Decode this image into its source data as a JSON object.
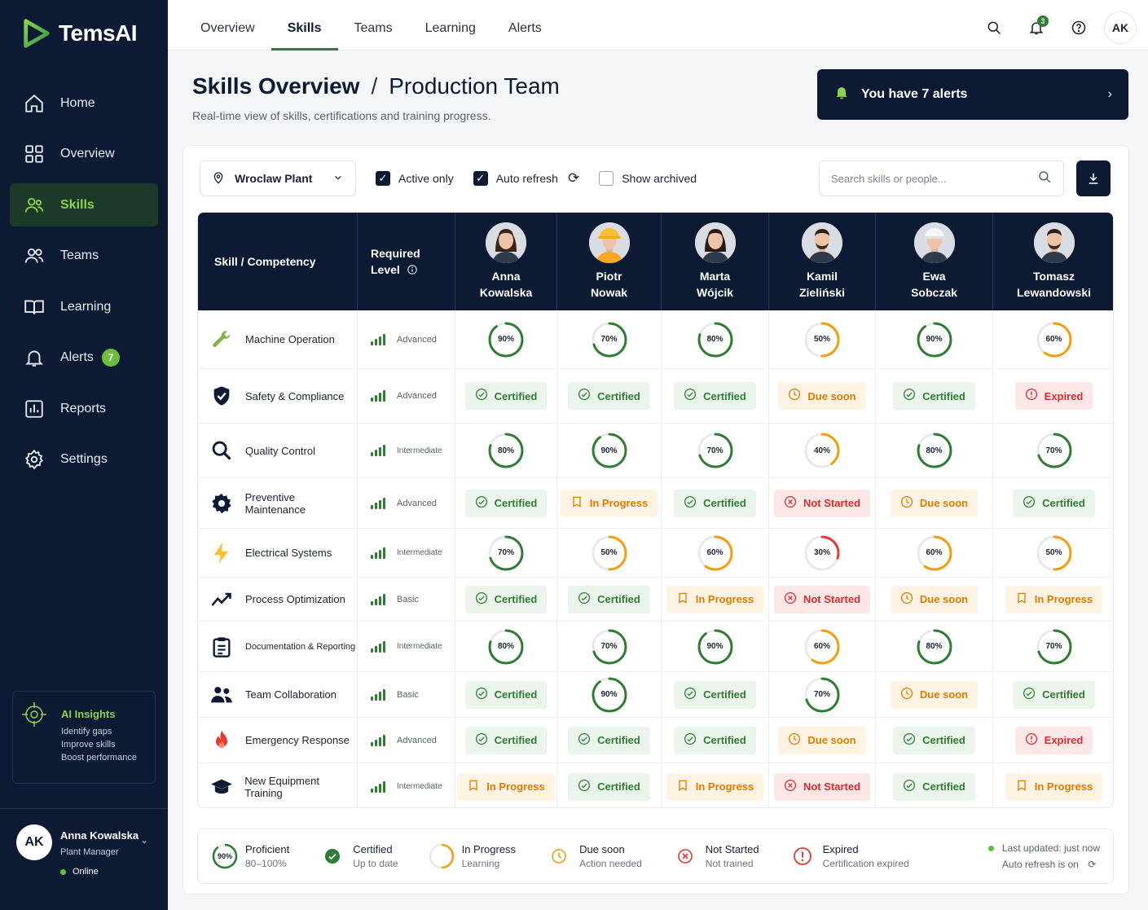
{
  "app": {
    "name": "TemsAI"
  },
  "sidebar": {
    "items": [
      {
        "label": "Home",
        "icon": "home-icon"
      },
      {
        "label": "Overview",
        "icon": "grid-icon"
      },
      {
        "label": "Skills",
        "icon": "users-icon",
        "active": true
      },
      {
        "label": "Teams",
        "icon": "team-icon"
      },
      {
        "label": "Learning",
        "icon": "book-icon"
      },
      {
        "label": "Alerts",
        "icon": "bell-icon",
        "badge": "7"
      },
      {
        "label": "Reports",
        "icon": "chart-icon"
      },
      {
        "label": "Settings",
        "icon": "gear-icon"
      }
    ],
    "ai": {
      "title": "AI Insights",
      "lines": [
        "Identify gaps",
        "Improve skills",
        "Boost performance"
      ]
    },
    "user": {
      "initials": "AK",
      "name": "Anna Kowalska",
      "role": "Plant Manager",
      "status": "Online"
    }
  },
  "topbar": {
    "tabs": [
      "Overview",
      "Skills",
      "Teams",
      "Learning",
      "Alerts"
    ],
    "active_tab": "Skills",
    "bell_count": "3",
    "avatar": "AK"
  },
  "header": {
    "title": "Skills Overview",
    "separator": "/",
    "team": "Production Team",
    "subtitle": "Real-time view of skills, certifications and training progress.",
    "alert_text": "You have 7 alerts"
  },
  "filters": {
    "location": "Wroclaw Plant",
    "active_only": {
      "label": "Active only",
      "checked": true
    },
    "auto_refresh": {
      "label": "Auto refresh",
      "checked": true
    },
    "show_archived": {
      "label": "Show archived",
      "checked": false
    },
    "search_placeholder": "Search skills or people..."
  },
  "table": {
    "col_skill": "Skill / Competency",
    "col_required_1": "Required",
    "col_required_2": "Level",
    "people": [
      {
        "first": "Anna",
        "last": "Kowalska",
        "hat": "none",
        "hair": "#3a2418"
      },
      {
        "first": "Piotr",
        "last": "Nowak",
        "hat": "yellow",
        "hair": "#6b4a2f"
      },
      {
        "first": "Marta",
        "last": "Wójcik",
        "hat": "none",
        "hair": "#2a1a12"
      },
      {
        "first": "Kamil",
        "last": "Zieliński",
        "hat": "none",
        "hair": "#2b2119"
      },
      {
        "first": "Ewa",
        "last": "Sobczak",
        "hat": "white",
        "hair": "#5a3a24"
      },
      {
        "first": "Tomasz",
        "last": "Lewandowski",
        "hat": "none",
        "hair": "#2b2119"
      }
    ],
    "rows": [
      {
        "skill": "Machine Operation",
        "icon": "wrench-icon",
        "level": "Advanced",
        "bars": 4,
        "cells": [
          {
            "p": 90
          },
          {
            "p": 70
          },
          {
            "p": 80
          },
          {
            "p": 50
          },
          {
            "p": 90
          },
          {
            "p": 60
          }
        ]
      },
      {
        "skill": "Safety & Compliance",
        "icon": "shield-icon",
        "level": "Advanced",
        "bars": 4,
        "cells": [
          {
            "s": "certified",
            "t": "Certified"
          },
          {
            "s": "certified",
            "t": "Certified"
          },
          {
            "s": "certified",
            "t": "Certified"
          },
          {
            "s": "due",
            "t": "Due soon"
          },
          {
            "s": "certified",
            "t": "Certified"
          },
          {
            "s": "expired",
            "t": "Expired"
          }
        ]
      },
      {
        "skill": "Quality Control",
        "icon": "magnifier-icon",
        "level": "Intermediate",
        "bars": 3,
        "cells": [
          {
            "p": 80
          },
          {
            "p": 90
          },
          {
            "p": 70
          },
          {
            "p": 40
          },
          {
            "p": 80
          },
          {
            "p": 70
          }
        ]
      },
      {
        "skill": "Preventive Maintenance",
        "icon": "cog-icon",
        "level": "Advanced",
        "bars": 4,
        "cells": [
          {
            "s": "certified",
            "t": "Certified"
          },
          {
            "s": "progress",
            "t": "In Progress"
          },
          {
            "s": "certified",
            "t": "Certified"
          },
          {
            "s": "notstarted",
            "t": "Not Started"
          },
          {
            "s": "due",
            "t": "Due soon"
          },
          {
            "s": "certified",
            "t": "Certified"
          }
        ]
      },
      {
        "skill": "Electrical Systems",
        "icon": "bolt-icon",
        "level": "Intermediate",
        "bars": 3,
        "cells": [
          {
            "p": 70
          },
          {
            "p": 50
          },
          {
            "p": 60
          },
          {
            "p": 30
          },
          {
            "p": 60
          },
          {
            "p": 50
          }
        ]
      },
      {
        "skill": "Process Optimization",
        "icon": "trend-icon",
        "level": "Basic",
        "bars": 2,
        "cells": [
          {
            "s": "certified",
            "t": "Certified"
          },
          {
            "s": "certified",
            "t": "Certified"
          },
          {
            "s": "progress",
            "t": "In Progress"
          },
          {
            "s": "notstarted",
            "t": "Not Started"
          },
          {
            "s": "due",
            "t": "Due soon"
          },
          {
            "s": "progress",
            "t": "In Progress"
          }
        ]
      },
      {
        "skill": "Documentation & Reporting",
        "icon": "clipboard-icon",
        "level": "Intermediate",
        "bars": 3,
        "cells": [
          {
            "p": 80
          },
          {
            "p": 70
          },
          {
            "p": 90
          },
          {
            "p": 60
          },
          {
            "p": 80
          },
          {
            "p": 70
          }
        ]
      },
      {
        "skill": "Team Collaboration",
        "icon": "people-icon",
        "level": "Basic",
        "bars": 2,
        "cells": [
          {
            "s": "certified",
            "t": "Certified"
          },
          {
            "p": 90
          },
          {
            "s": "certified",
            "t": "Certified"
          },
          {
            "p": 70
          },
          {
            "s": "due",
            "t": "Due soon"
          },
          {
            "s": "certified",
            "t": "Certified"
          }
        ]
      },
      {
        "skill": "Emergency Response",
        "icon": "flame-icon",
        "level": "Advanced",
        "bars": 4,
        "cells": [
          {
            "s": "certified",
            "t": "Certified"
          },
          {
            "s": "certified",
            "t": "Certified"
          },
          {
            "s": "certified",
            "t": "Certified"
          },
          {
            "s": "due",
            "t": "Due soon"
          },
          {
            "s": "certified",
            "t": "Certified"
          },
          {
            "s": "expired",
            "t": "Expired"
          }
        ]
      },
      {
        "skill": "New Equipment Training",
        "icon": "graduation-cap-icon",
        "level": "Intermediate",
        "bars": 3,
        "cells": [
          {
            "s": "progress",
            "t": "In Progress"
          },
          {
            "s": "certified",
            "t": "Certified"
          },
          {
            "s": "progress",
            "t": "In Progress"
          },
          {
            "s": "notstarted",
            "t": "Not Started"
          },
          {
            "s": "certified",
            "t": "Certified"
          },
          {
            "s": "progress",
            "t": "In Progress"
          }
        ]
      }
    ]
  },
  "legend": {
    "items": [
      {
        "kind": "ring",
        "ring_text": "90%",
        "l1": "Proficient",
        "l2": "80–100%"
      },
      {
        "kind": "certified",
        "l1": "Certified",
        "l2": "Up to date"
      },
      {
        "kind": "halfring",
        "l1": "In Progress",
        "l2": "Learning"
      },
      {
        "kind": "due",
        "l1": "Due soon",
        "l2": "Action needed"
      },
      {
        "kind": "notstarted",
        "l1": "Not Started",
        "l2": "Not trained"
      },
      {
        "kind": "expired",
        "l1": "Expired",
        "l2": "Certification expired"
      }
    ],
    "updated": "Last updated: just now",
    "auto": "Auto refresh is on"
  },
  "colors": {
    "navy": "#0c1b33",
    "green": "#2e7d32",
    "accent": "#8fd14f",
    "orange": "#f59e0b",
    "red": "#e53935"
  }
}
